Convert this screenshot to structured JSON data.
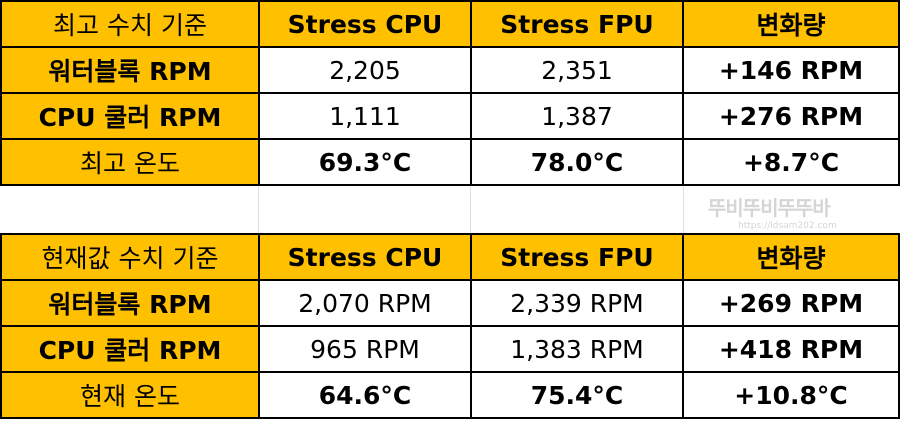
{
  "table_peak": {
    "headers": [
      "최고 수치 기준",
      "Stress CPU",
      "Stress FPU",
      "변화량"
    ],
    "rows": [
      {
        "label": "워터블록 RPM",
        "cpu": "2,205",
        "fpu": "2,351",
        "delta": "+146 RPM"
      },
      {
        "label": "CPU 쿨러 RPM",
        "cpu": "1,111",
        "fpu": "1,387",
        "delta": "+276 RPM"
      },
      {
        "label": "최고 온도",
        "cpu": "69.3°C",
        "fpu": "78.0°C",
        "delta": "+8.7°C"
      }
    ]
  },
  "table_current": {
    "headers": [
      "현재값 수치 기준",
      "Stress CPU",
      "Stress FPU",
      "변화량"
    ],
    "rows": [
      {
        "label": "워터블록 RPM",
        "cpu": "2,070 RPM",
        "fpu": "2,339 RPM",
        "delta": "+269 RPM"
      },
      {
        "label": "CPU 쿨러 RPM",
        "cpu": "965 RPM",
        "fpu": "1,383 RPM",
        "delta": "+418 RPM"
      },
      {
        "label": "현재 온도",
        "cpu": "64.6°C",
        "fpu": "75.4°C",
        "delta": "+10.8°C"
      }
    ]
  },
  "watermark": {
    "main": "뚜비뚜비뚜뚜바",
    "url": "https://ldsam202.com"
  },
  "colors": {
    "header_fill": "#ffc000",
    "cell_fill": "#ffffff",
    "border": "#000000"
  }
}
